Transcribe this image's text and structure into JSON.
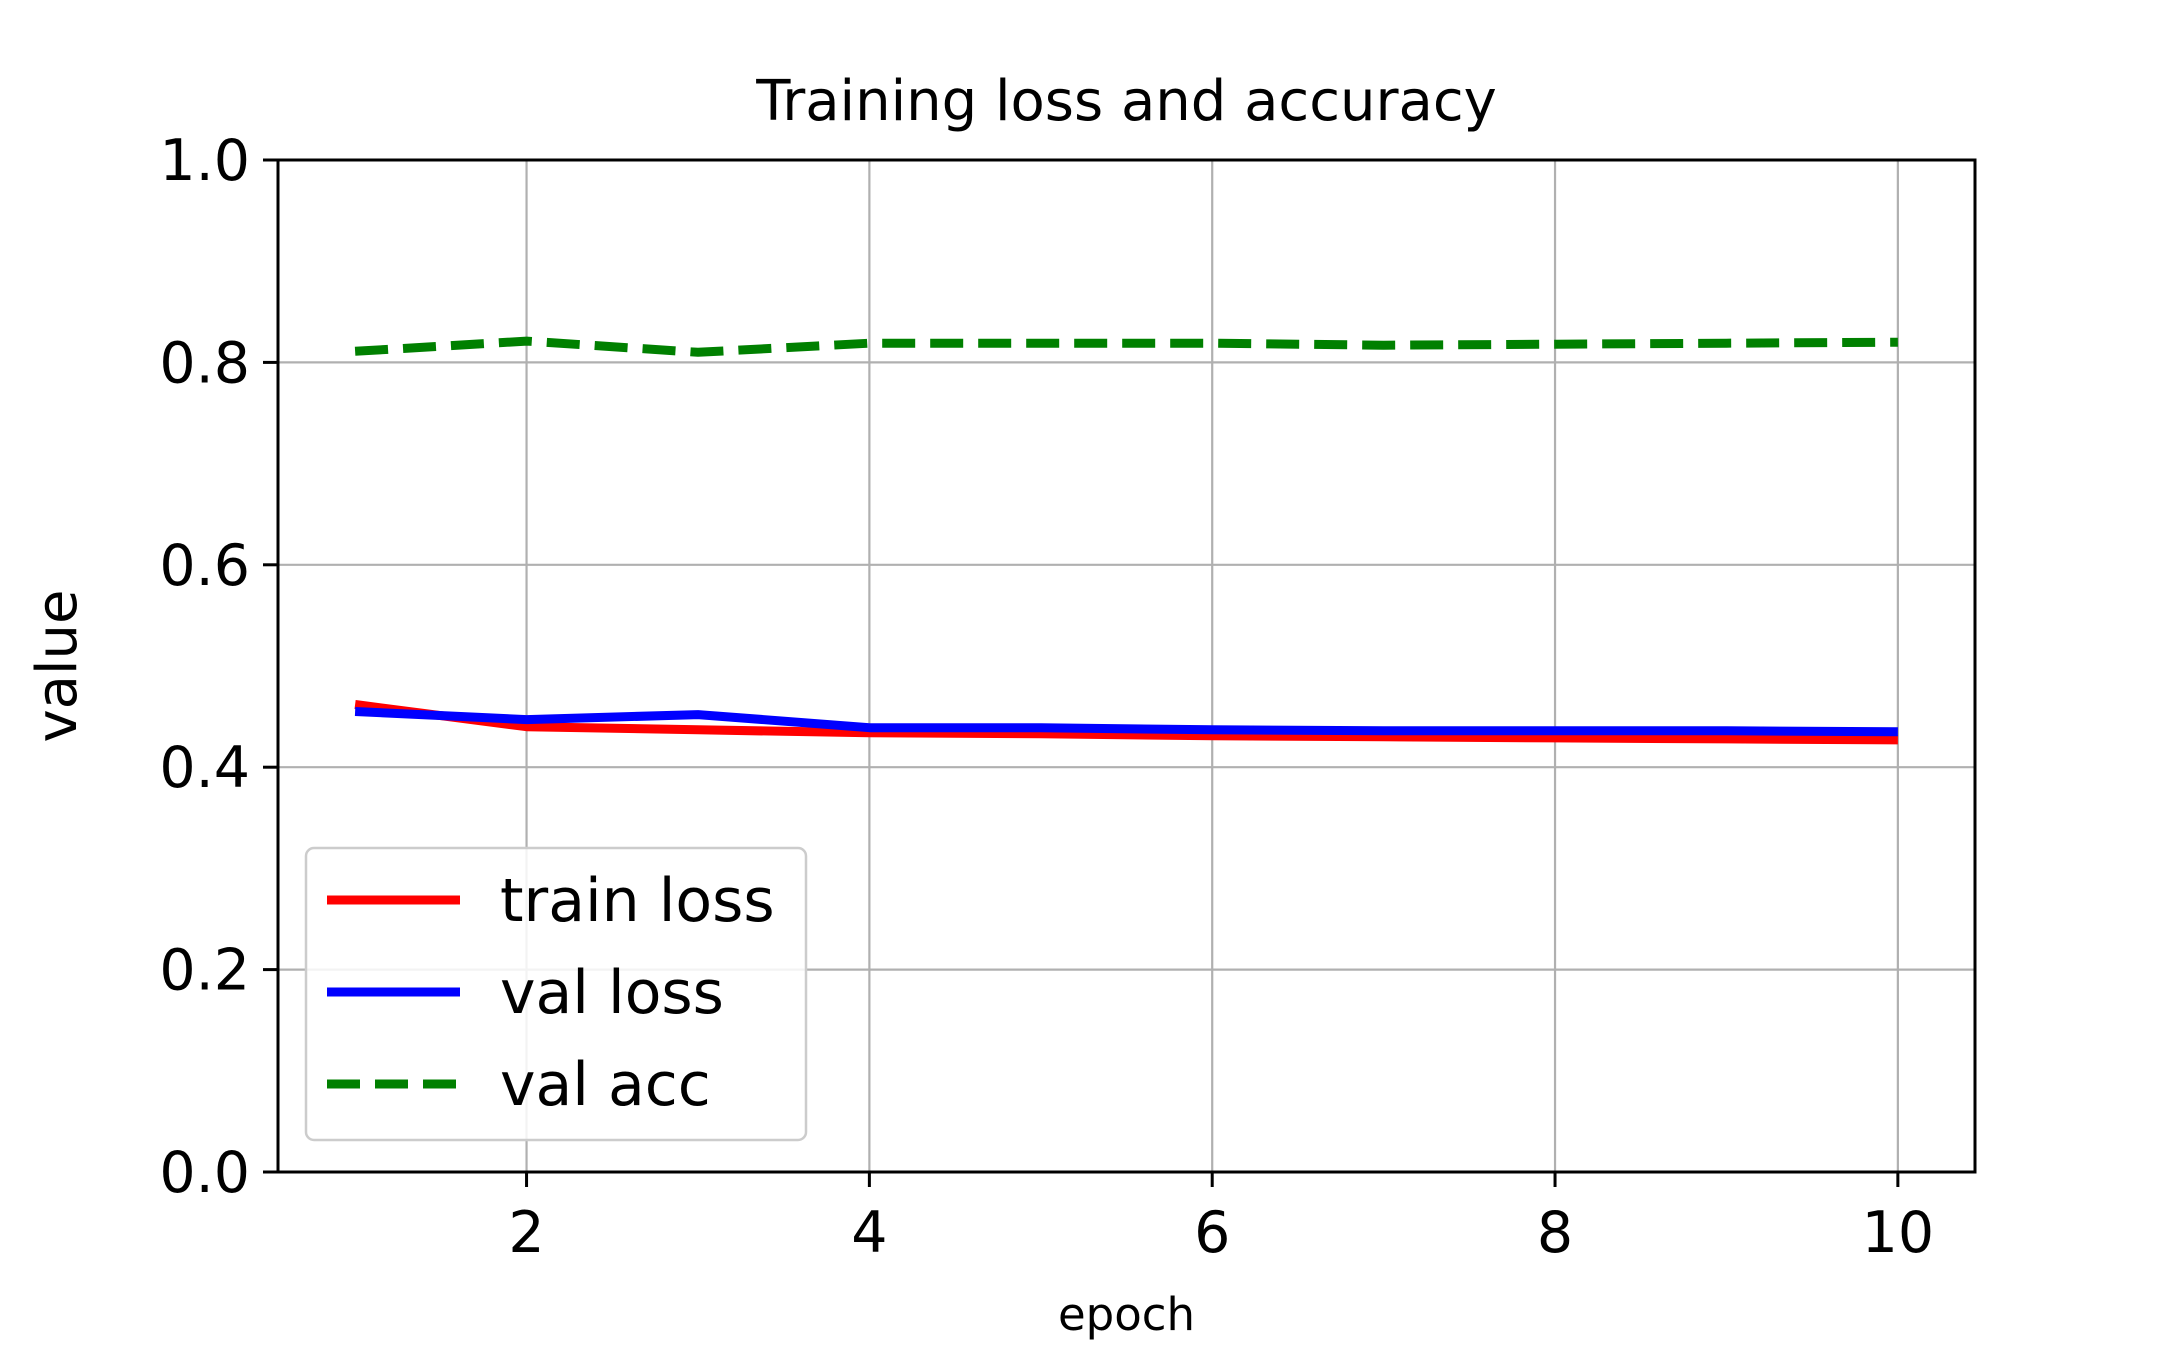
{
  "chart_data": {
    "type": "line",
    "title": "Training loss and accuracy",
    "xlabel": "epoch",
    "ylabel": "value",
    "xlim": [
      0.55,
      10.45
    ],
    "ylim": [
      0.0,
      1.0
    ],
    "x": [
      1,
      2,
      3,
      4,
      5,
      6,
      7,
      8,
      9,
      10
    ],
    "xticks": [
      2,
      4,
      6,
      8,
      10
    ],
    "xtick_labels": [
      "2",
      "4",
      "6",
      "8",
      "10"
    ],
    "yticks": [
      0.0,
      0.2,
      0.4,
      0.6,
      0.8,
      1.0
    ],
    "ytick_labels": [
      "0.0",
      "0.2",
      "0.4",
      "0.6",
      "0.8",
      "1.0"
    ],
    "grid": true,
    "legend_position": "lower-left",
    "series": [
      {
        "name": "train loss",
        "color": "#ff0000",
        "style": "solid",
        "values": [
          0.462,
          0.44,
          0.437,
          0.434,
          0.433,
          0.431,
          0.43,
          0.429,
          0.428,
          0.427
        ]
      },
      {
        "name": "val loss",
        "color": "#0000ff",
        "style": "solid",
        "values": [
          0.455,
          0.447,
          0.452,
          0.439,
          0.439,
          0.437,
          0.436,
          0.436,
          0.436,
          0.435
        ]
      },
      {
        "name": "val acc",
        "color": "#008000",
        "style": "dashed",
        "values": [
          0.811,
          0.821,
          0.81,
          0.819,
          0.819,
          0.819,
          0.817,
          0.818,
          0.819,
          0.82
        ]
      }
    ]
  }
}
